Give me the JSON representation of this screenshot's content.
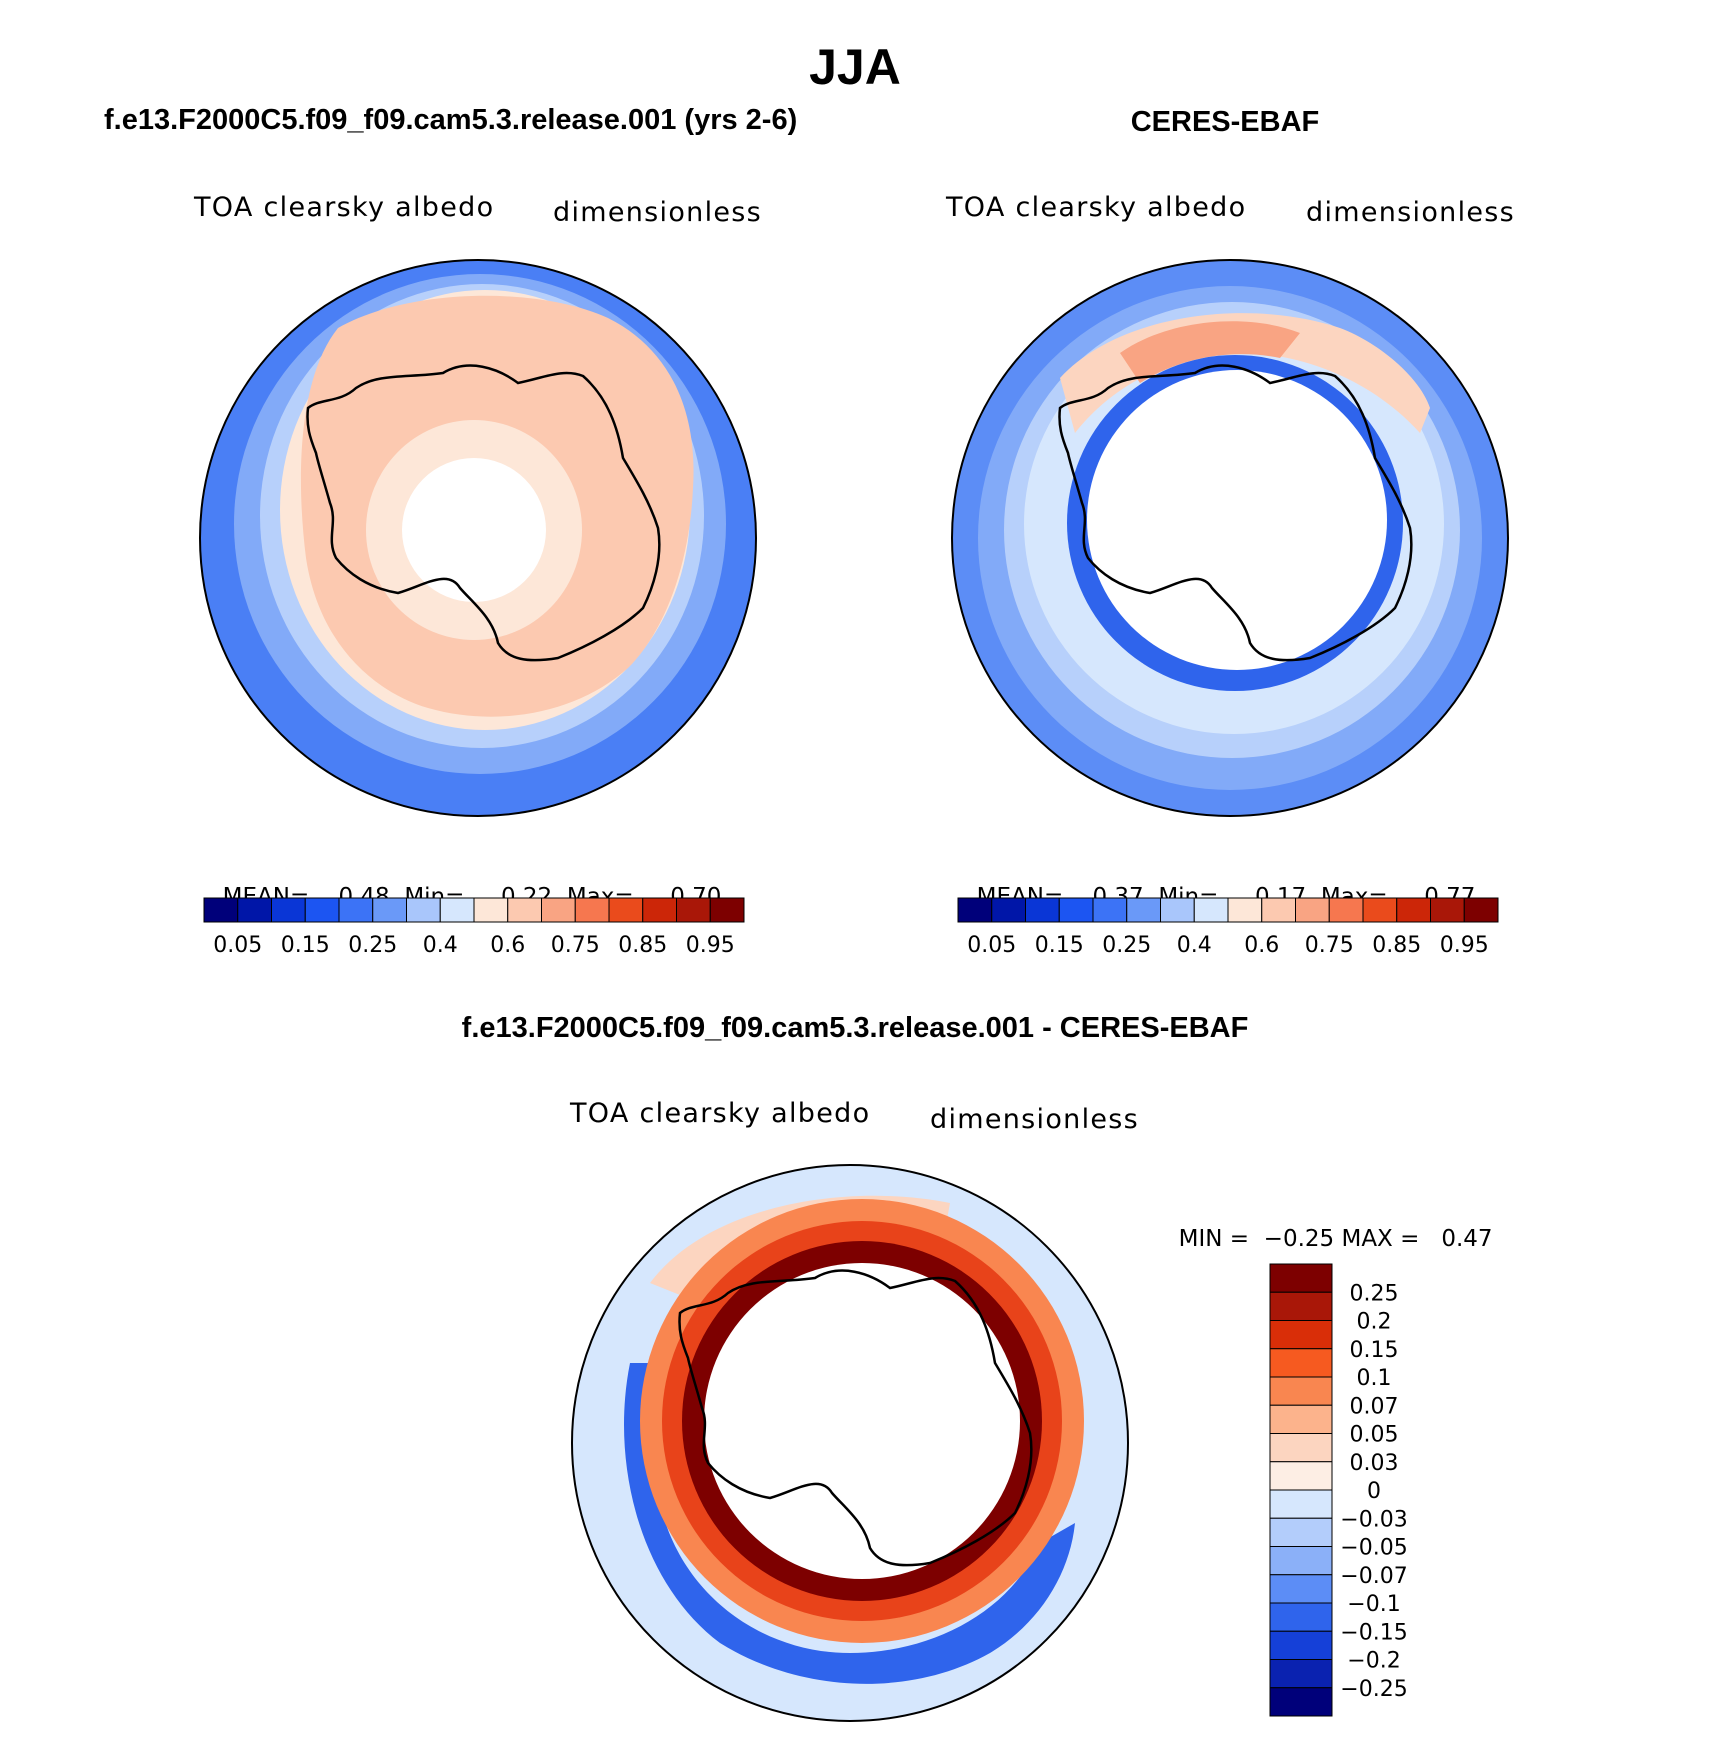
{
  "main_title": "JJA",
  "panels": {
    "model": {
      "title": "f.e13.F2000C5.f09_f09.cam5.3.release.001 (yrs 2-6)",
      "variable": "TOA clearsky albedo",
      "units": "dimensionless",
      "stats": {
        "mean_label": "MEAN=",
        "mean": "0.48",
        "min_label": "Min=",
        "min": "0.22",
        "max_label": "Max=",
        "max": "0.70"
      }
    },
    "obs": {
      "title": "CERES-EBAF",
      "variable": "TOA clearsky albedo",
      "units": "dimensionless",
      "stats": {
        "mean_label": "MEAN=",
        "mean": "0.37",
        "min_label": "Min=",
        "min": "0.17",
        "max_label": "Max=",
        "max": "0.77"
      }
    },
    "diff": {
      "title": "f.e13.F2000C5.f09_f09.cam5.3.release.001 - CERES-EBAF",
      "variable": "TOA clearsky albedo",
      "units": "dimensionless",
      "stats": {
        "min_label": "MIN =",
        "min": "−0.25",
        "max_label": "MAX =",
        "max": "0.47"
      }
    }
  },
  "colorbar_abs": {
    "colors": [
      "#00007a",
      "#0016a8",
      "#0a36d6",
      "#1c55f2",
      "#3c73f6",
      "#6a99f8",
      "#a9c6fb",
      "#d6e7fd",
      "#fde7d8",
      "#fcc9b0",
      "#f9a483",
      "#f6774f",
      "#ea4b1c",
      "#cc2608",
      "#a91708",
      "#7d0000"
    ],
    "labels": [
      "0.05",
      "0.15",
      "0.25",
      "0.4",
      "0.6",
      "0.75",
      "0.85",
      "0.95"
    ]
  },
  "colorbar_diff": {
    "colors": [
      "#7d0000",
      "#a91708",
      "#d92e08",
      "#f65a20",
      "#f98650",
      "#fcb38c",
      "#fcd5c0",
      "#fdeee4",
      "#d6e7fd",
      "#b3cdfb",
      "#8bb0f8",
      "#5c8df6",
      "#2f64ec",
      "#1540d8",
      "#0a22b0",
      "#00007a"
    ],
    "labels": [
      "0.25",
      "0.2",
      "0.15",
      "0.1",
      "0.07",
      "0.05",
      "0.03",
      "0",
      "−0.03",
      "−0.05",
      "−0.07",
      "−0.1",
      "−0.15",
      "−0.2",
      "−0.25"
    ]
  },
  "chart_data": [
    {
      "type": "heatmap",
      "title": "f.e13.F2000C5.f09_f09.cam5.3.release.001 (yrs 2-6)",
      "field": "TOA clearsky albedo",
      "units": "dimensionless",
      "projection": "south polar stereographic",
      "contour_levels": [
        0.05,
        0.1,
        0.15,
        0.2,
        0.25,
        0.3,
        0.4,
        0.5,
        0.6,
        0.7,
        0.75,
        0.8,
        0.85,
        0.9,
        0.95
      ],
      "mean": 0.48,
      "min": 0.22,
      "max": 0.7
    },
    {
      "type": "heatmap",
      "title": "CERES-EBAF",
      "field": "TOA clearsky albedo",
      "units": "dimensionless",
      "projection": "south polar stereographic",
      "contour_levels": [
        0.05,
        0.1,
        0.15,
        0.2,
        0.25,
        0.3,
        0.4,
        0.5,
        0.6,
        0.7,
        0.75,
        0.8,
        0.85,
        0.9,
        0.95
      ],
      "mean": 0.37,
      "min": 0.17,
      "max": 0.77
    },
    {
      "type": "heatmap",
      "title": "f.e13.F2000C5.f09_f09.cam5.3.release.001 - CERES-EBAF",
      "field": "TOA clearsky albedo",
      "units": "dimensionless",
      "projection": "south polar stereographic",
      "contour_levels": [
        -0.25,
        -0.2,
        -0.15,
        -0.1,
        -0.07,
        -0.05,
        -0.03,
        0,
        0.03,
        0.05,
        0.07,
        0.1,
        0.15,
        0.2,
        0.25
      ],
      "min": -0.25,
      "max": 0.47
    }
  ]
}
